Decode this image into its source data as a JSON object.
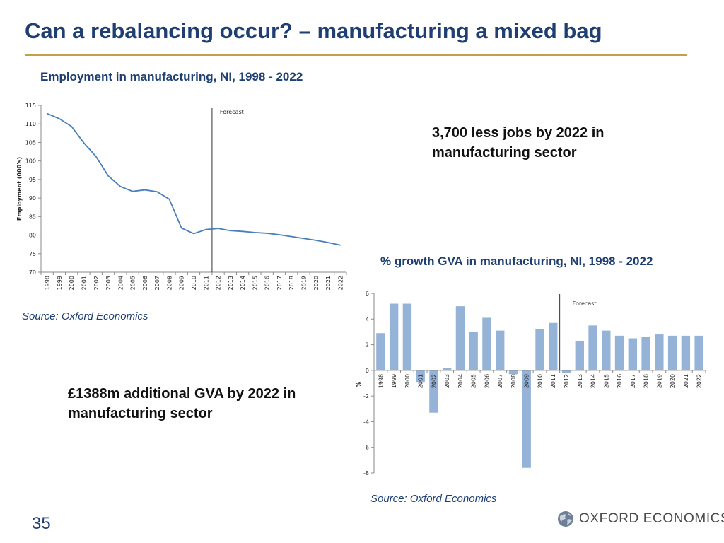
{
  "slide": {
    "title": "Can a rebalancing occur? – manufacturing a mixed bag",
    "page_number": "35",
    "logo_text": "OXFORD ECONOMICS",
    "accent_color": "#c1a04a",
    "title_color": "#1f3f73"
  },
  "callouts": {
    "jobs": "3,700 less jobs by 2022 in manufacturing sector",
    "gva": "£1388m additional GVA by 2022 in manufacturing sector"
  },
  "chart_data": [
    {
      "type": "line",
      "title": "Employment in manufacturing, NI, 1998 - 2022",
      "xlabel": "",
      "ylabel": "Employment (000's)",
      "source": "Source: Oxford Economics",
      "annotation": "Forecast",
      "forecast_from": "2012",
      "ylim": [
        70,
        115
      ],
      "yticks": [
        70,
        75,
        80,
        85,
        90,
        95,
        100,
        105,
        110,
        115
      ],
      "grid": false,
      "line_color": "#4a7ebb",
      "categories": [
        "1998",
        "1999",
        "2000",
        "2001",
        "2002",
        "2003",
        "2004",
        "2005",
        "2006",
        "2007",
        "2008",
        "2009",
        "2010",
        "2011",
        "2012",
        "2013",
        "2014",
        "2015",
        "2016",
        "2017",
        "2018",
        "2019",
        "2020",
        "2021",
        "2022"
      ],
      "series": [
        {
          "values": [
            112.8,
            111.4,
            109.3,
            104.9,
            101.2,
            96.0,
            93.1,
            91.8,
            92.2,
            91.7,
            89.7,
            81.9,
            80.4,
            81.5,
            81.8,
            81.2,
            81.0,
            80.7,
            80.5,
            80.1,
            79.6,
            79.1,
            78.6,
            78.0,
            77.3
          ]
        }
      ]
    },
    {
      "type": "bar",
      "title": "% growth GVA in manufacturing, NI, 1998 - 2022",
      "xlabel": "",
      "ylabel": "%",
      "source": "Source: Oxford Economics",
      "annotation": "Forecast",
      "forecast_from": "2012",
      "ylim": [
        -8,
        6
      ],
      "yticks": [
        -8,
        -6,
        -4,
        -2,
        0,
        2,
        4,
        6
      ],
      "grid": false,
      "bar_color": "#95b3d7",
      "categories": [
        "1998",
        "1999",
        "2000",
        "2001",
        "2002",
        "2003",
        "2004",
        "2005",
        "2006",
        "2007",
        "2008",
        "2009",
        "2010",
        "2011",
        "2012",
        "2013",
        "2014",
        "2015",
        "2016",
        "2017",
        "2018",
        "2019",
        "2020",
        "2021",
        "2022"
      ],
      "series": [
        {
          "values": [
            2.9,
            5.2,
            5.2,
            -0.9,
            -3.3,
            0.2,
            5.0,
            3.0,
            4.1,
            3.1,
            -0.3,
            -7.6,
            3.2,
            3.7,
            -0.2,
            2.3,
            3.5,
            3.1,
            2.7,
            2.5,
            2.6,
            2.8,
            2.7,
            2.7,
            2.7
          ]
        }
      ]
    }
  ]
}
